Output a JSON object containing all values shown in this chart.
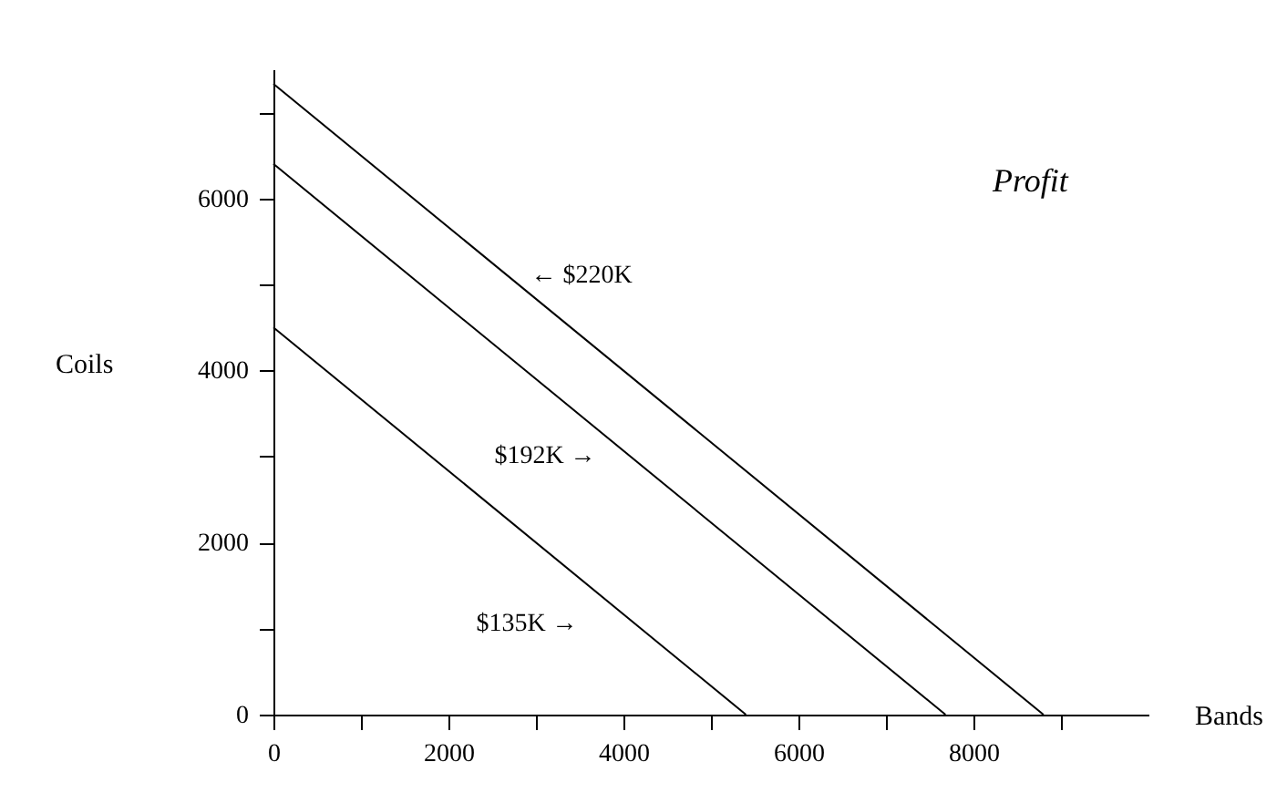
{
  "chart_data": {
    "type": "line",
    "title": "Profit",
    "xlabel": "Bands",
    "ylabel": "Coils",
    "series": [
      {
        "color": "#000000",
        "x": [
          0,
          5400
        ],
        "values": [
          4500,
          0
        ]
      },
      {
        "color": "#000000",
        "x": [
          0,
          7680
        ],
        "values": [
          6400,
          0
        ]
      },
      {
        "color": "#000000",
        "x": [
          0,
          8800
        ],
        "values": [
          7330,
          0
        ]
      }
    ],
    "annotations": [
      "$135K →",
      "$192K →",
      "← $220K"
    ],
    "xlim": [
      0,
      10000
    ],
    "ylim": [
      0,
      7500
    ],
    "xticks": [
      0,
      {
        "value": 1000,
        "label": null
      },
      2000,
      {
        "value": 3000,
        "label": null
      },
      4000,
      {
        "value": 5000,
        "label": null
      },
      6000,
      {
        "value": 7000,
        "label": null
      },
      8000,
      {
        "value": 9000,
        "label": null
      }
    ],
    "yticks": [
      0,
      {
        "value": 1000,
        "label": null
      },
      2000,
      {
        "value": 3000,
        "label": null
      },
      4000,
      {
        "value": 5000,
        "label": null
      },
      6000,
      {
        "value": 7000,
        "label": null
      }
    ],
    "grid": false,
    "marker": "none",
    "line_style": "solid"
  }
}
